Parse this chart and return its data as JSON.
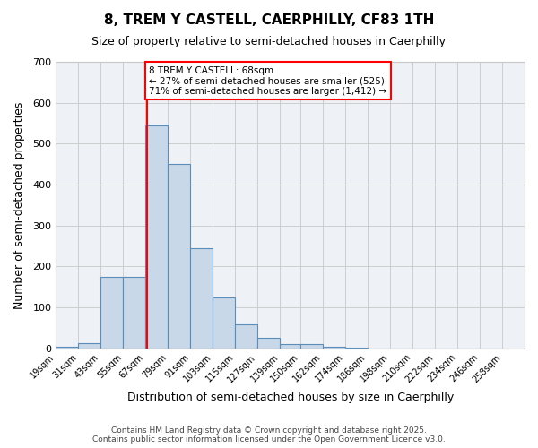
{
  "title_line1": "8, TREM Y CASTELL, CAERPHILLY, CF83 1TH",
  "title_line2": "Size of property relative to semi-detached houses in Caerphilly",
  "xlabel": "Distribution of semi-detached houses by size in Caerphilly",
  "ylabel": "Number of semi-detached properties",
  "bin_labels": [
    "19sqm",
    "31sqm",
    "43sqm",
    "55sqm",
    "67sqm",
    "79sqm",
    "91sqm",
    "103sqm",
    "115sqm",
    "127sqm",
    "139sqm",
    "150sqm",
    "162sqm",
    "174sqm",
    "186sqm",
    "198sqm",
    "210sqm",
    "222sqm",
    "234sqm",
    "246sqm",
    "258sqm"
  ],
  "bin_left_edges": [
    19,
    31,
    43,
    55,
    67,
    79,
    91,
    103,
    115,
    127,
    139,
    150,
    162,
    174,
    186,
    198,
    210,
    222,
    234,
    246
  ],
  "bin_width": 12,
  "bar_heights": [
    5,
    12,
    175,
    175,
    545,
    450,
    245,
    125,
    58,
    25,
    10,
    10,
    5,
    2,
    0,
    0,
    0,
    0,
    0,
    0
  ],
  "bar_color": "#c8d8e8",
  "bar_edge_color": "#5b8db8",
  "grid_color": "#c8c8c8",
  "background_color": "#eef2f7",
  "vertical_line_x": 68,
  "vertical_line_color": "red",
  "annotation_text": "8 TREM Y CASTELL: 68sqm\n← 27% of semi-detached houses are smaller (525)\n71% of semi-detached houses are larger (1,412) →",
  "annotation_box_facecolor": "white",
  "annotation_box_edgecolor": "red",
  "ylim": [
    0,
    700
  ],
  "yticks": [
    0,
    100,
    200,
    300,
    400,
    500,
    600,
    700
  ],
  "footnote1": "Contains HM Land Registry data © Crown copyright and database right 2025.",
  "footnote2": "Contains public sector information licensed under the Open Government Licence v3.0."
}
